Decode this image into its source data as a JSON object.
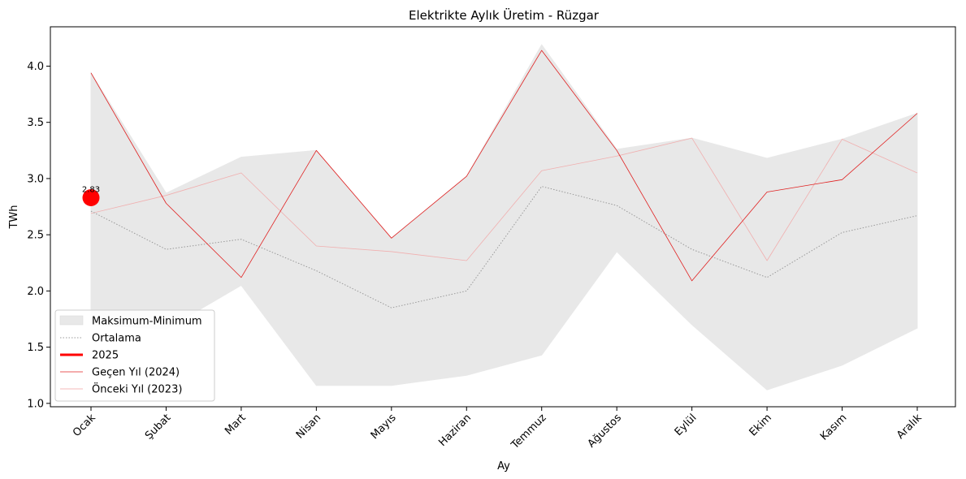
{
  "chart_data": {
    "type": "line",
    "title": "Elektrikte Aylık Üretim - Rüzgar",
    "xlabel": "Ay",
    "ylabel": "TWh",
    "categories": [
      "Ocak",
      "Şubat",
      "Mart",
      "Nisan",
      "Mayıs",
      "Haziran",
      "Temmuz",
      "Ağustos",
      "Eylül",
      "Ekim",
      "Kasım",
      "Aralık"
    ],
    "ylim": [
      0.97,
      4.35
    ],
    "yticks": [
      "1.0",
      "1.5",
      "2.0",
      "2.5",
      "3.0",
      "3.5",
      "4.0"
    ],
    "grid": false,
    "legend_position": "lower-left",
    "band": {
      "name": "Maksimum-Minimum",
      "color": "#e8e8e8",
      "max": [
        3.94,
        2.87,
        3.19,
        3.25,
        2.47,
        3.02,
        4.19,
        3.26,
        3.36,
        3.18,
        3.35,
        3.58
      ],
      "min": [
        1.7,
        1.66,
        2.05,
        1.16,
        1.16,
        1.25,
        1.43,
        2.35,
        1.7,
        1.12,
        1.34,
        1.67
      ]
    },
    "series": [
      {
        "name": "Ortalama",
        "color": "#999999",
        "style": "dotted",
        "values": [
          2.71,
          2.37,
          2.46,
          2.18,
          1.85,
          2.0,
          2.93,
          2.76,
          2.37,
          2.12,
          2.52,
          2.67
        ]
      },
      {
        "name": "2025",
        "color": "#ff0000",
        "style": "thick",
        "values": [
          2.83,
          null,
          null,
          null,
          null,
          null,
          null,
          null,
          null,
          null,
          null,
          null
        ]
      },
      {
        "name": "Geçen Yıl (2024)",
        "color": "#e02020",
        "style": "thin",
        "values": [
          3.94,
          2.78,
          2.12,
          3.25,
          2.47,
          3.02,
          4.14,
          3.25,
          2.09,
          2.88,
          2.99,
          3.58
        ]
      },
      {
        "name": "Önceki Yıl (2023)",
        "color": "#f2a0a0",
        "style": "faint",
        "values": [
          2.69,
          2.85,
          3.05,
          2.4,
          2.35,
          2.27,
          3.07,
          3.2,
          3.36,
          2.27,
          3.35,
          3.05
        ]
      }
    ],
    "annotations": [
      {
        "label": "2.83",
        "category": "Ocak",
        "value": 2.83
      }
    ]
  }
}
